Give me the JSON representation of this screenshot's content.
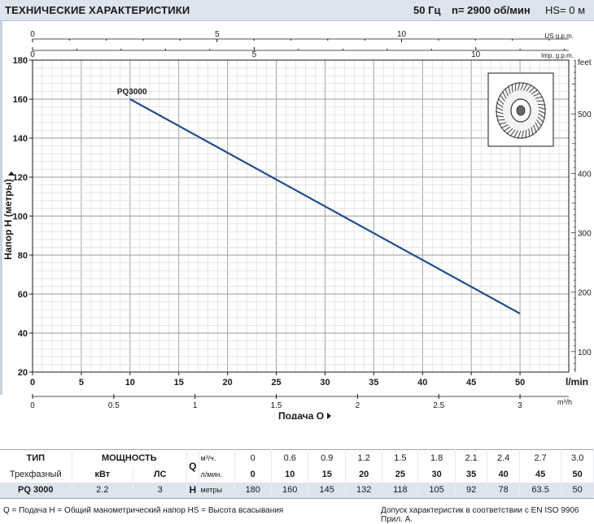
{
  "header": {
    "title": "ТЕХНИЧЕСКИЕ ХАРАКТЕРИСТИКИ",
    "frequency": "50 Гц",
    "speed": "n= 2900  об/мин",
    "hs": "HS= 0 м"
  },
  "chart_data": {
    "type": "line",
    "xlabel": "Подача Q",
    "ylabel": "Напор H (метры)",
    "x_unit": "l/min",
    "xlim": [
      0,
      55
    ],
    "ylim": [
      20,
      180
    ],
    "x_ticks": [
      0,
      5,
      10,
      15,
      20,
      25,
      30,
      35,
      40,
      45,
      50
    ],
    "y_ticks": [
      20,
      40,
      60,
      80,
      100,
      120,
      140,
      160,
      180
    ],
    "grid": true,
    "secondary_axes": {
      "us_gpm": {
        "label": "US g.p.m.",
        "ticks": [
          0,
          5,
          10
        ]
      },
      "imp_gpm": {
        "label": "Imp. g.p.m.",
        "ticks": [
          0,
          5,
          10
        ]
      },
      "m3h": {
        "label": "m³/h",
        "ticks": [
          "0",
          "0.5",
          "1",
          "1.5",
          "2",
          "2.5",
          "3"
        ]
      },
      "feet": {
        "label": "feet",
        "ticks": [
          100,
          200,
          300,
          400,
          500
        ]
      }
    },
    "series": [
      {
        "name": "PQ3000",
        "color": "#1f4e8c",
        "x": [
          10,
          50
        ],
        "y": [
          160,
          50
        ]
      }
    ]
  },
  "table": {
    "col_type": "ТИП",
    "col_power": "МОЩНОСТЬ",
    "q_symbol": "Q",
    "q_unit_m3h": "м³/ч.",
    "q_unit_lmin": "л/мин.",
    "phase": "Трехфазный",
    "kw": "кВт",
    "hp": "ЛС",
    "model": "PQ 3000",
    "kw_value": "2.2",
    "hp_value": "3",
    "h_symbol": "H",
    "h_unit": "метры",
    "q_m3h": [
      "0",
      "0.6",
      "0.9",
      "1.2",
      "1.5",
      "1.8",
      "2.1",
      "2.4",
      "2.7",
      "3.0"
    ],
    "q_lmin": [
      "0",
      "10",
      "15",
      "20",
      "25",
      "30",
      "35",
      "40",
      "45",
      "50"
    ],
    "h_m": [
      "180",
      "160",
      "145",
      "132",
      "118",
      "105",
      "92",
      "78",
      "63.5",
      "50"
    ]
  },
  "footer": {
    "legend": "Q = Подача  H = Общий манометрический напор  HS = Высота всасывания",
    "note": "Допуск характеристик в соответствии с EN ISO 9906 Прил. A."
  }
}
